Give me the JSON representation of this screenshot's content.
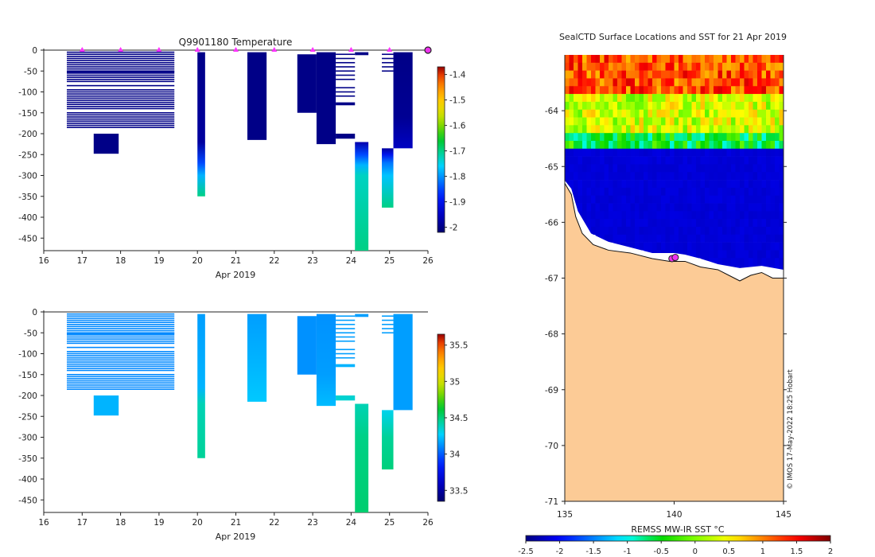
{
  "chart_data": [
    {
      "id": "temperature",
      "type": "heatmap",
      "title": "Q9901180  Temperature",
      "xlabel": "Apr 2019",
      "ylabel": "",
      "xlim": [
        16,
        26
      ],
      "ylim": [
        -480,
        0
      ],
      "xticks": [
        16,
        17,
        18,
        19,
        20,
        21,
        22,
        23,
        24,
        25,
        26
      ],
      "yticks": [
        0,
        -50,
        -100,
        -150,
        -200,
        -250,
        -300,
        -350,
        -400,
        -450
      ],
      "markers_x": [
        17,
        18,
        19,
        20,
        21,
        22,
        23,
        24,
        25
      ],
      "end_marker_x": 26,
      "colorbar": {
        "min": -2.02,
        "max": -1.37,
        "ticks": [
          -1.4,
          -1.5,
          -1.6,
          -1.7,
          -1.8,
          -1.9,
          -2
        ]
      },
      "profiles": [
        {
          "x0": 16.6,
          "x1": 19.4,
          "type": "lines",
          "value": -2.0,
          "depths": [
            -5,
            -10,
            -15,
            -20,
            -25,
            -30,
            -35,
            -40,
            -45,
            -50,
            -52,
            -55,
            -60,
            -65,
            -70,
            -75,
            -85,
            -95,
            -100,
            -105,
            -110,
            -115,
            -120,
            -125,
            -130,
            -135,
            -140,
            -150,
            -155,
            -160,
            -165,
            -170,
            -175,
            -180,
            -185
          ]
        },
        {
          "x0": 17.3,
          "x1": 17.95,
          "type": "block",
          "top": -200,
          "bottom": -248,
          "value": -2.0
        },
        {
          "x0": 20.0,
          "x1": 20.2,
          "type": "gradient",
          "top": -5,
          "bottom": -350,
          "stops": [
            [
              -5,
              -2.0
            ],
            [
              -220,
              -1.98
            ],
            [
              -270,
              -1.85
            ],
            [
              -300,
              -1.78
            ],
            [
              -350,
              -1.7
            ]
          ]
        },
        {
          "x0": 21.3,
          "x1": 21.8,
          "type": "block",
          "top": -5,
          "bottom": -215,
          "value": -2.0
        },
        {
          "x0": 22.6,
          "x1": 23.1,
          "type": "block",
          "top": -10,
          "bottom": -150,
          "value": -2.0
        },
        {
          "x0": 23.1,
          "x1": 23.6,
          "type": "block",
          "top": -5,
          "bottom": -225,
          "value": -2.0
        },
        {
          "x0": 23.6,
          "x1": 24.1,
          "type": "lines",
          "value": -2.0,
          "depths": [
            -10,
            -20,
            -30,
            -40,
            -50,
            -60,
            -70,
            -90,
            -100,
            -110
          ]
        },
        {
          "x0": 23.6,
          "x1": 24.1,
          "type": "block",
          "top": -125,
          "bottom": -132,
          "value": -2.0
        },
        {
          "x0": 23.6,
          "x1": 24.1,
          "type": "block",
          "top": -200,
          "bottom": -212,
          "value": -2.0
        },
        {
          "x0": 24.1,
          "x1": 24.45,
          "type": "block",
          "top": -5,
          "bottom": -12,
          "value": -2.0
        },
        {
          "x0": 24.1,
          "x1": 24.45,
          "type": "gradient",
          "top": -220,
          "bottom": -480,
          "stops": [
            [
              -220,
              -1.97
            ],
            [
              -250,
              -1.85
            ],
            [
              -275,
              -1.78
            ],
            [
              -300,
              -1.73
            ],
            [
              -480,
              -1.7
            ]
          ]
        },
        {
          "x0": 24.8,
          "x1": 25.1,
          "type": "lines",
          "value": -2.0,
          "depths": [
            -10,
            -20,
            -30,
            -40,
            -50
          ]
        },
        {
          "x0": 24.8,
          "x1": 25.1,
          "type": "gradient",
          "top": -235,
          "bottom": -377,
          "stops": [
            [
              -235,
              -1.98
            ],
            [
              -250,
              -1.9
            ],
            [
              -270,
              -1.82
            ],
            [
              -300,
              -1.77
            ],
            [
              -377,
              -1.7
            ]
          ]
        },
        {
          "x0": 25.1,
          "x1": 25.6,
          "type": "gradient",
          "top": -5,
          "bottom": -235,
          "stops": [
            [
              -5,
              -2.0
            ],
            [
              -160,
              -1.99
            ],
            [
              -235,
              -1.95
            ]
          ]
        }
      ]
    },
    {
      "id": "salinity",
      "type": "heatmap",
      "title": "",
      "xlabel": "Apr 2019",
      "ylabel": "",
      "xlim": [
        16,
        26
      ],
      "ylim": [
        -480,
        0
      ],
      "xticks": [
        16,
        17,
        18,
        19,
        20,
        21,
        22,
        23,
        24,
        25,
        26
      ],
      "yticks": [
        0,
        -50,
        -100,
        -150,
        -200,
        -250,
        -300,
        -350,
        -400,
        -450
      ],
      "colorbar": {
        "min": 33.35,
        "max": 35.65,
        "ticks": [
          35.5,
          35,
          34.5,
          34,
          33.5
        ]
      },
      "profiles": [
        {
          "x0": 16.6,
          "x1": 19.4,
          "type": "lines",
          "value": 34.1,
          "depths": [
            -5,
            -10,
            -15,
            -20,
            -25,
            -30,
            -35,
            -40,
            -45,
            -50,
            -52,
            -55,
            -60,
            -65,
            -70,
            -75,
            -85,
            -95,
            -100,
            -105,
            -110,
            -115,
            -120,
            -125,
            -130,
            -135,
            -140,
            -150,
            -155,
            -160,
            -165,
            -170,
            -175,
            -180,
            -185
          ]
        },
        {
          "x0": 17.3,
          "x1": 17.95,
          "type": "block",
          "top": -200,
          "bottom": -248,
          "value": 34.2
        },
        {
          "x0": 20.0,
          "x1": 20.2,
          "type": "gradient",
          "top": -5,
          "bottom": -350,
          "stops": [
            [
              -5,
              34.15
            ],
            [
              -180,
              34.2
            ],
            [
              -220,
              34.4
            ],
            [
              -350,
              34.45
            ]
          ]
        },
        {
          "x0": 21.3,
          "x1": 21.8,
          "type": "gradient",
          "top": -5,
          "bottom": -215,
          "stops": [
            [
              -5,
              34.15
            ],
            [
              -120,
              34.2
            ],
            [
              -215,
              34.25
            ]
          ]
        },
        {
          "x0": 22.6,
          "x1": 23.1,
          "type": "block",
          "top": -10,
          "bottom": -150,
          "value": 34.12
        },
        {
          "x0": 23.1,
          "x1": 23.6,
          "type": "gradient",
          "top": -5,
          "bottom": -225,
          "stops": [
            [
              -5,
              34.12
            ],
            [
              -150,
              34.15
            ],
            [
              -225,
              34.22
            ]
          ]
        },
        {
          "x0": 23.6,
          "x1": 24.1,
          "type": "lines",
          "value": 34.15,
          "depths": [
            -10,
            -20,
            -30,
            -40,
            -50,
            -60,
            -70,
            -90,
            -100,
            -110
          ]
        },
        {
          "x0": 23.6,
          "x1": 24.1,
          "type": "block",
          "top": -125,
          "bottom": -132,
          "value": 34.2
        },
        {
          "x0": 23.6,
          "x1": 24.1,
          "type": "block",
          "top": -200,
          "bottom": -212,
          "value": 34.35
        },
        {
          "x0": 24.1,
          "x1": 24.45,
          "type": "block",
          "top": -5,
          "bottom": -12,
          "value": 34.15
        },
        {
          "x0": 24.1,
          "x1": 24.45,
          "type": "gradient",
          "top": -220,
          "bottom": -480,
          "stops": [
            [
              -220,
              34.4
            ],
            [
              -300,
              34.48
            ],
            [
              -480,
              34.52
            ]
          ]
        },
        {
          "x0": 24.8,
          "x1": 25.1,
          "type": "lines",
          "value": 34.15,
          "depths": [
            -10,
            -20,
            -30,
            -40,
            -50
          ]
        },
        {
          "x0": 24.8,
          "x1": 25.1,
          "type": "gradient",
          "top": -235,
          "bottom": -377,
          "stops": [
            [
              -235,
              34.3
            ],
            [
              -300,
              34.45
            ],
            [
              -377,
              34.5
            ]
          ]
        },
        {
          "x0": 25.1,
          "x1": 25.6,
          "type": "block",
          "top": -5,
          "bottom": -235,
          "value": 34.15
        }
      ]
    },
    {
      "id": "sst-map",
      "type": "heatmap",
      "title": "SealCTD Surface Locations and SST for 21 Apr 2019",
      "xlabel": "",
      "ylabel": "",
      "xlim": [
        135,
        145
      ],
      "ylim": [
        -71,
        -63
      ],
      "xticks": [
        135,
        140,
        145
      ],
      "yticks": [
        -64,
        -65,
        -66,
        -67,
        -68,
        -69,
        -70,
        -71
      ],
      "colorbar": {
        "label": "REMSS MW-IR SST °C",
        "min": -2.5,
        "max": 2,
        "ticks": [
          -2.5,
          -2,
          -1.5,
          -1,
          -0.5,
          0,
          0.5,
          1,
          1.5,
          2
        ]
      },
      "colormap": [
        "#00007f",
        "#0000ff",
        "#0080ff",
        "#00ffff",
        "#00d800",
        "#7fff00",
        "#ffff00",
        "#ff8000",
        "#ff0000",
        "#7f0000"
      ],
      "land_color": "#fccb96",
      "coast": [
        [
          135,
          -65.3
        ],
        [
          135.3,
          -65.5
        ],
        [
          135.5,
          -65.9
        ],
        [
          135.8,
          -66.2
        ],
        [
          136.3,
          -66.4
        ],
        [
          137,
          -66.5
        ],
        [
          138,
          -66.55
        ],
        [
          139,
          -66.65
        ],
        [
          139.8,
          -66.7
        ],
        [
          140.5,
          -66.7
        ],
        [
          141.2,
          -66.8
        ],
        [
          142,
          -66.85
        ],
        [
          142.5,
          -66.95
        ],
        [
          143,
          -67.05
        ],
        [
          143.5,
          -66.95
        ],
        [
          144,
          -66.9
        ],
        [
          144.5,
          -67
        ],
        [
          145,
          -67
        ]
      ],
      "ice_edge": [
        [
          135,
          -65.25
        ],
        [
          135.3,
          -65.4
        ],
        [
          135.6,
          -65.8
        ],
        [
          136.2,
          -66.2
        ],
        [
          137,
          -66.35
        ],
        [
          138,
          -66.45
        ],
        [
          139,
          -66.55
        ],
        [
          140,
          -66.55
        ],
        [
          140.5,
          -66.58
        ],
        [
          141.2,
          -66.65
        ],
        [
          142,
          -66.75
        ],
        [
          143,
          -66.82
        ],
        [
          144,
          -66.78
        ],
        [
          145,
          -66.85
        ]
      ],
      "water_zones": [
        {
          "from": -63,
          "to": -63.6,
          "value": 1.2
        },
        {
          "from": -63.6,
          "to": -64.3,
          "value": 0.3
        },
        {
          "from": -64.3,
          "to": -64.6,
          "value": -0.5
        },
        {
          "from": -64.6,
          "to": -65.1,
          "value": -2.2
        }
      ],
      "seal_locations": [
        [
          139.9,
          -66.65
        ],
        [
          140.05,
          -66.63
        ]
      ],
      "credit": "© IMOS 17-May-2022 18:25 Hobart"
    }
  ]
}
